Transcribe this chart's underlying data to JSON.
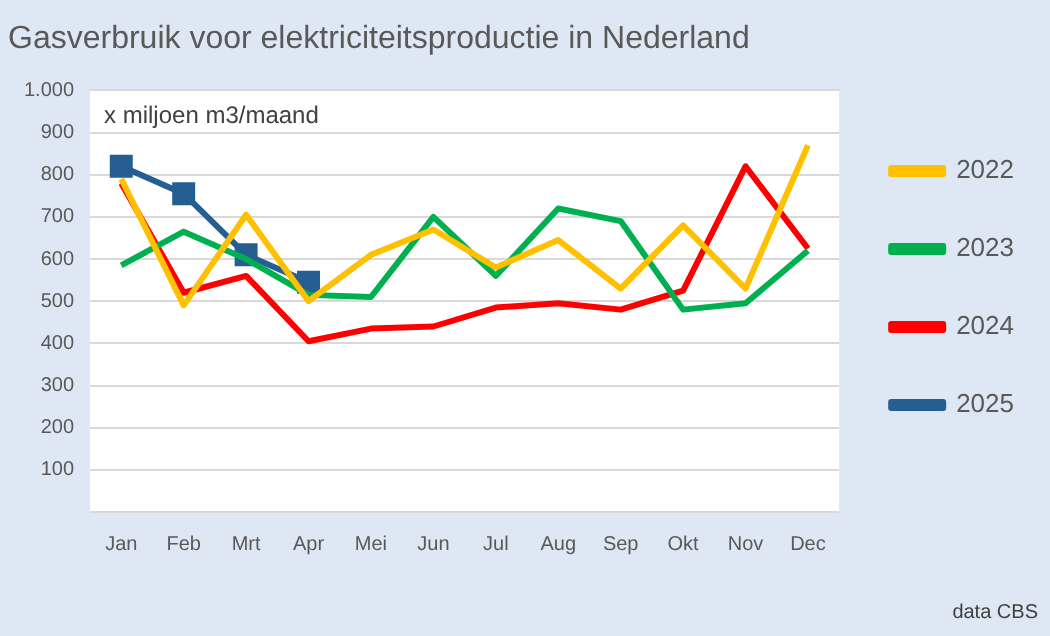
{
  "chart_data": {
    "type": "line",
    "title": "Gasverbruik voor elektriciteitsproductie in Nederland",
    "categories": [
      "Jan",
      "Feb",
      "Mrt",
      "Apr",
      "Mei",
      "Jun",
      "Jul",
      "Aug",
      "Sep",
      "Okt",
      "Nov",
      "Dec"
    ],
    "series": [
      {
        "name": "2022",
        "color": "#ffc000",
        "values": [
          790,
          490,
          705,
          500,
          610,
          670,
          580,
          645,
          530,
          680,
          530,
          870
        ]
      },
      {
        "name": "2023",
        "color": "#00b050",
        "values": [
          585,
          665,
          600,
          515,
          510,
          700,
          560,
          720,
          690,
          480,
          495,
          620
        ]
      },
      {
        "name": "2024",
        "color": "#ff0000",
        "values": [
          780,
          520,
          560,
          405,
          435,
          440,
          485,
          495,
          480,
          525,
          820,
          625
        ]
      },
      {
        "name": "2025",
        "color": "#255e91",
        "marker": "square",
        "values": [
          820,
          755,
          610,
          545,
          null,
          null,
          null,
          null,
          null,
          null,
          null,
          null
        ]
      }
    ],
    "ylim": [
      0,
      1000
    ],
    "yticks": [
      {
        "value": 0,
        "label": null
      },
      100,
      200,
      300,
      400,
      500,
      600,
      700,
      800,
      900,
      {
        "value": 1000,
        "label": "1.000"
      }
    ],
    "grid": "y",
    "legend": "right",
    "marker": "none",
    "annotations": [
      "x miljoen m3/maand",
      "data CBS"
    ]
  }
}
